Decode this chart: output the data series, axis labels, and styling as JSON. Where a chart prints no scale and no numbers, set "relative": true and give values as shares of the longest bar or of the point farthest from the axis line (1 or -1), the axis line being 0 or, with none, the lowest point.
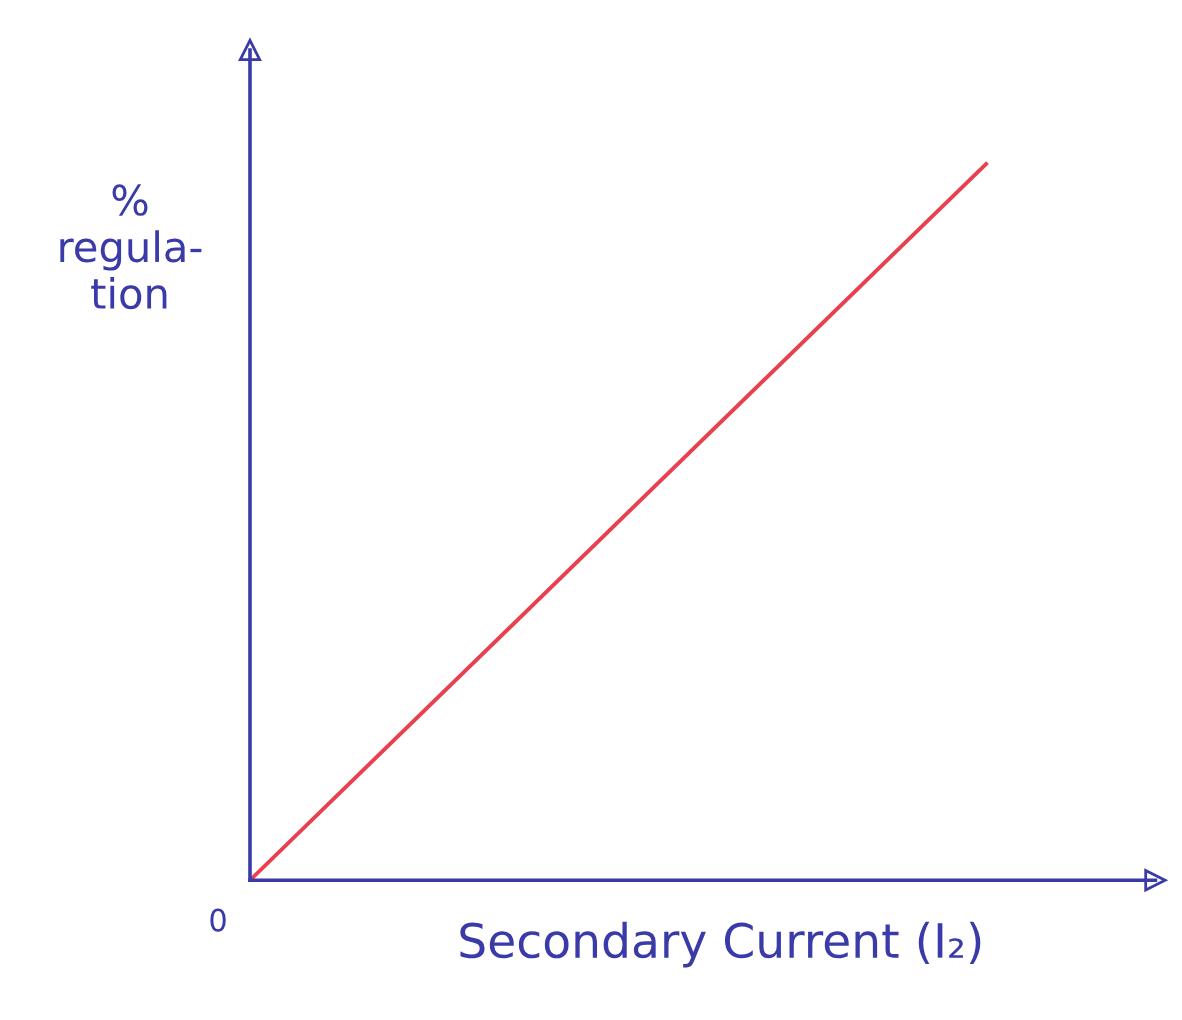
{
  "chart_data": {
    "type": "line",
    "relative": true,
    "xlabel": "Secondary Current (I₂)",
    "ylabel": "%\nregula-\ntion",
    "categories": [
      null,
      null
    ],
    "annotations": [
      "0"
    ],
    "series": [
      {
        "color": "#e8404f",
        "values": [
          0,
          1
        ]
      }
    ],
    "marker": "none",
    "line_style": "solid",
    "grid": false,
    "legend": false
  }
}
